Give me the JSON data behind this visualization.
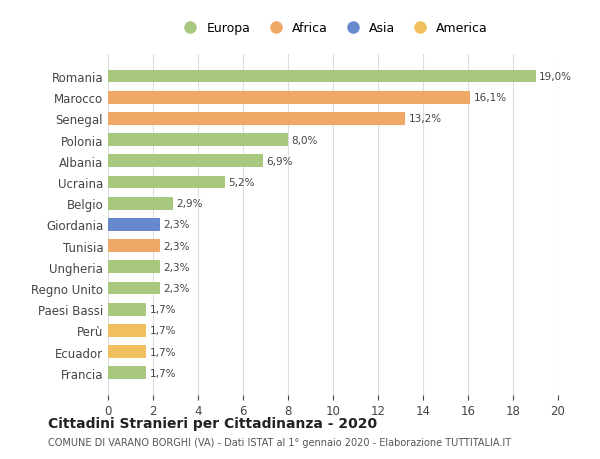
{
  "countries": [
    "Francia",
    "Ecuador",
    "Perù",
    "Paesi Bassi",
    "Regno Unito",
    "Ungheria",
    "Tunisia",
    "Giordania",
    "Belgio",
    "Ucraina",
    "Albania",
    "Polonia",
    "Senegal",
    "Marocco",
    "Romania"
  ],
  "values": [
    1.7,
    1.7,
    1.7,
    1.7,
    2.3,
    2.3,
    2.3,
    2.3,
    2.9,
    5.2,
    6.9,
    8.0,
    13.2,
    16.1,
    19.0
  ],
  "colors": [
    "#a8c880",
    "#f0c060",
    "#f0c060",
    "#a8c880",
    "#a8c880",
    "#a8c880",
    "#f0a868",
    "#6688cc",
    "#a8c880",
    "#a8c880",
    "#a8c880",
    "#a8c880",
    "#f0a868",
    "#f0a868",
    "#a8c880"
  ],
  "labels": [
    "1,7%",
    "1,7%",
    "1,7%",
    "1,7%",
    "2,3%",
    "2,3%",
    "2,3%",
    "2,3%",
    "2,9%",
    "5,2%",
    "6,9%",
    "8,0%",
    "13,2%",
    "16,1%",
    "19,0%"
  ],
  "legend": [
    {
      "label": "Europa",
      "color": "#a8c880"
    },
    {
      "label": "Africa",
      "color": "#f0a868"
    },
    {
      "label": "Asia",
      "color": "#6688cc"
    },
    {
      "label": "America",
      "color": "#f0c060"
    }
  ],
  "title": "Cittadini Stranieri per Cittadinanza - 2020",
  "subtitle": "COMUNE DI VARANO BORGHI (VA) - Dati ISTAT al 1° gennaio 2020 - Elaborazione TUTTITALIA.IT",
  "xlim": [
    0,
    20
  ],
  "xticks": [
    0,
    2,
    4,
    6,
    8,
    10,
    12,
    14,
    16,
    18,
    20
  ],
  "background_color": "#ffffff",
  "grid_color": "#dddddd"
}
